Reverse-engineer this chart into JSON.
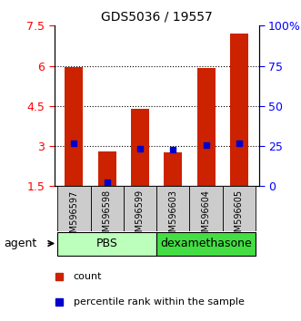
{
  "title": "GDS5036 / 19557",
  "categories": [
    "GSM596597",
    "GSM596598",
    "GSM596599",
    "GSM596603",
    "GSM596604",
    "GSM596605"
  ],
  "red_bars": [
    5.95,
    2.8,
    4.4,
    2.75,
    5.93,
    7.2
  ],
  "blue_markers": [
    3.1,
    1.65,
    2.9,
    2.85,
    3.05,
    3.1
  ],
  "ymin": 1.5,
  "ymax": 7.5,
  "yticks": [
    1.5,
    3.0,
    4.5,
    6.0,
    7.5
  ],
  "ytick_labels": [
    "1.5",
    "3",
    "4.5",
    "6",
    "7.5"
  ],
  "right_yticks": [
    0,
    25,
    50,
    75,
    100
  ],
  "right_ytick_labels": [
    "0",
    "25",
    "50",
    "75",
    "100%"
  ],
  "gridlines": [
    3.0,
    4.5,
    6.0
  ],
  "group1_label": "PBS",
  "group2_label": "dexamethasone",
  "group1_indices": [
    0,
    1,
    2
  ],
  "group2_indices": [
    3,
    4,
    5
  ],
  "agent_label": "agent",
  "legend_red": "count",
  "legend_blue": "percentile rank within the sample",
  "bar_color": "#CC2200",
  "blue_color": "#0000CC",
  "group1_color": "#BBFFBB",
  "group2_color": "#44DD44",
  "bar_bottom": 1.5,
  "bar_width": 0.55,
  "figsize": [
    3.31,
    3.54
  ],
  "dpi": 100
}
